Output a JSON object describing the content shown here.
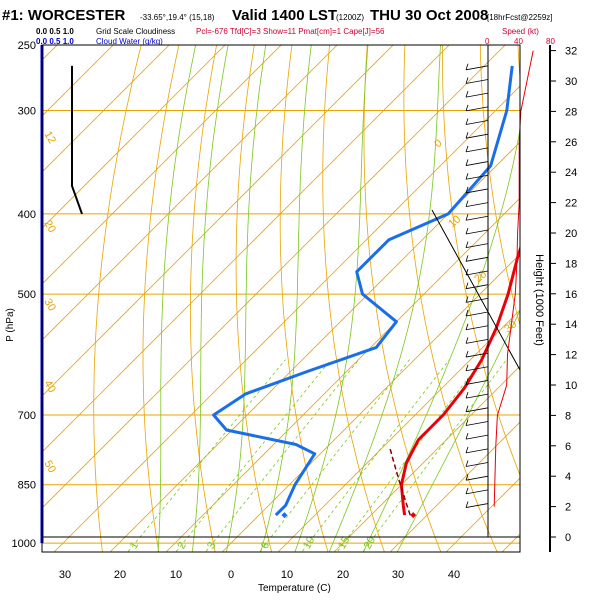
{
  "header": {
    "station": "#1: WORCESTER",
    "coords": "-33.65°,19.4° (15,18)",
    "valid": "Valid 1400 LST",
    "zulu": "(1200Z)",
    "date": "THU 30 Oct 2008",
    "run": "[18hrFcst@2259z]",
    "cloud_scale_top": "0.0   0.5   1.0",
    "cloud_scale_bottom": "0.0   0.5   1.0",
    "cloud_label_1": "Grid Scale Cloudiness",
    "cloud_label_2": "Cloud Water (g/kg)",
    "indices": "Pcl=-676 Tfd[C]=3 Show=11 Pmat[cm]=1 Cape[J]=56",
    "speed_label": "Speed (kt)",
    "speed_ticks": [
      "0",
      "40",
      "80"
    ]
  },
  "colors": {
    "isotherm": "#e8a400",
    "dry_adiabat": "#e8a400",
    "moist_adiabat": "#7cc61e",
    "mixing_ratio": "#7cc61e",
    "temperature": "#e8000a",
    "dewpoint": "#1a6ee8",
    "wind_speed": "#e8000a",
    "parcel": "#8b0000",
    "header_red": "#cc0033",
    "header_blue": "#0000cc"
  },
  "chart_data": {
    "type": "skew-t",
    "xlabel": "Temperature (C)",
    "ylabel": "P (hPa)",
    "right_label": "Height (1000 Feet)",
    "pressure_ticks": [
      1000,
      850,
      700,
      500,
      400,
      300,
      250
    ],
    "temperature_ticks": [
      30,
      20,
      10,
      0,
      10,
      20,
      30,
      40
    ],
    "height_ticks": [
      0,
      2,
      4,
      6,
      8,
      10,
      12,
      14,
      16,
      18,
      20,
      22,
      24,
      26,
      28,
      30,
      32
    ],
    "mixing_ratio_labels": [
      "1",
      "2",
      "3",
      "6",
      "10",
      "15",
      "20"
    ],
    "isotherm_labels": [
      "10",
      "20",
      "30",
      "0",
      "10",
      "20",
      "30"
    ],
    "temperature_profile": [
      {
        "p": 925,
        "t": 26
      },
      {
        "p": 900,
        "t": 24
      },
      {
        "p": 850,
        "t": 20
      },
      {
        "p": 800,
        "t": 17
      },
      {
        "p": 750,
        "t": 15
      },
      {
        "p": 700,
        "t": 15
      },
      {
        "p": 650,
        "t": 14
      },
      {
        "p": 600,
        "t": 12
      },
      {
        "p": 550,
        "t": 9
      },
      {
        "p": 500,
        "t": 5
      },
      {
        "p": 450,
        "t": 0
      },
      {
        "p": 400,
        "t": -5
      },
      {
        "p": 350,
        "t": -11
      },
      {
        "p": 300,
        "t": -18
      },
      {
        "p": 265,
        "t": -24
      }
    ],
    "dewpoint_profile": [
      {
        "p": 925,
        "t": 3
      },
      {
        "p": 900,
        "t": 3
      },
      {
        "p": 850,
        "t": 1
      },
      {
        "p": 780,
        "t": -1
      },
      {
        "p": 760,
        "t": -6
      },
      {
        "p": 730,
        "t": -21
      },
      {
        "p": 700,
        "t": -26
      },
      {
        "p": 660,
        "t": -24
      },
      {
        "p": 620,
        "t": -17
      },
      {
        "p": 580,
        "t": -9
      },
      {
        "p": 540,
        "t": -10
      },
      {
        "p": 500,
        "t": -21
      },
      {
        "p": 470,
        "t": -26
      },
      {
        "p": 430,
        "t": -26
      },
      {
        "p": 400,
        "t": -20
      },
      {
        "p": 350,
        "t": -21
      },
      {
        "p": 300,
        "t": -28
      },
      {
        "p": 265,
        "t": -35
      }
    ],
    "surface_parcel": {
      "t": 27,
      "td": 4
    },
    "cloud_cover": [
      {
        "p": 400,
        "value": 1.0
      },
      {
        "p": 370,
        "value": 0.75
      },
      {
        "p": 300,
        "value": 0.75
      },
      {
        "p": 265,
        "value": 0.75
      }
    ],
    "wind_speed_profile": [
      {
        "h": 2,
        "v": 8
      },
      {
        "h": 4,
        "v": 9
      },
      {
        "h": 6,
        "v": 10
      },
      {
        "h": 8,
        "v": 12
      },
      {
        "h": 10,
        "v": 24
      },
      {
        "h": 12,
        "v": 25
      },
      {
        "h": 14,
        "v": 30
      },
      {
        "h": 16,
        "v": 35
      },
      {
        "h": 18,
        "v": 37
      },
      {
        "h": 20,
        "v": 38
      },
      {
        "h": 22,
        "v": 40
      },
      {
        "h": 24,
        "v": 40
      },
      {
        "h": 26,
        "v": 40
      },
      {
        "h": 28,
        "v": 42
      },
      {
        "h": 30,
        "v": 50
      },
      {
        "h": 32,
        "v": 58
      }
    ]
  }
}
